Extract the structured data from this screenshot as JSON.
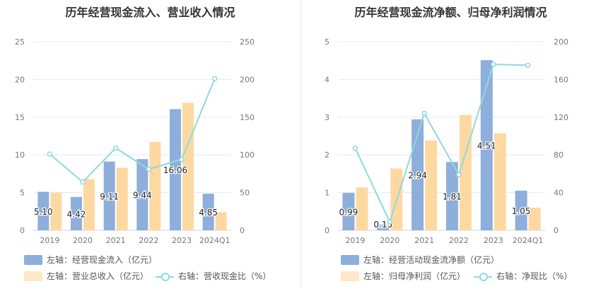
{
  "colors": {
    "bar1": "#8eaedb",
    "bar2": "#fdd9a1",
    "line": "#8fd9df",
    "grid": "#e4e8f1",
    "axis_text": "#777777"
  },
  "left": {
    "title": "历年经营现金流入、营业收入情况",
    "legend": {
      "bar1": "左轴：经营现金流入（亿元）",
      "bar2": "左轴：营业总收入（亿元）",
      "line": "右轴：营收现金比（%）"
    }
  },
  "right": {
    "title": "历年经营现金流净额、归母净利润情况",
    "legend": {
      "bar1": "左轴：经营活动现金流净额（亿元）",
      "bar2": "左轴：归母净利润（亿元）",
      "line": "右轴：净现比（%）"
    }
  },
  "chart_data": [
    {
      "type": "bar",
      "title": "历年经营现金流入、营业收入情况",
      "categories": [
        "2019",
        "2020",
        "2021",
        "2022",
        "2023",
        "2024Q1"
      ],
      "ylim": [
        0,
        25
      ],
      "yticks": [
        "0",
        "5",
        "10",
        "15",
        "20",
        "25"
      ],
      "y2lim": [
        0,
        250
      ],
      "y2ticks": [
        "0",
        "50",
        "100",
        "150",
        "200",
        "250"
      ],
      "series": [
        {
          "name": "左轴：经营现金流入（亿元）",
          "axis": "left",
          "kind": "bar",
          "values": [
            5.1,
            4.42,
            9.11,
            9.44,
            16.06,
            4.85
          ],
          "labels": [
            "5.10",
            "4.42",
            "9.11",
            "9.44",
            "16.06",
            "4.85"
          ]
        },
        {
          "name": "左轴：营业总收入（亿元）",
          "axis": "left",
          "kind": "bar",
          "values": [
            5.0,
            6.8,
            8.3,
            11.7,
            16.9,
            2.4
          ]
        },
        {
          "name": "右轴：营收现金比（%）",
          "axis": "right",
          "kind": "line",
          "values": [
            101,
            64,
            109,
            81,
            94,
            201
          ]
        }
      ],
      "grid": true,
      "legend_position": "bottom"
    },
    {
      "type": "bar",
      "title": "历年经营现金流净额、归母净利润情况",
      "categories": [
        "2019",
        "2020",
        "2021",
        "2022",
        "2023",
        "2024Q1"
      ],
      "ylim": [
        0,
        5
      ],
      "yticks": [
        "0",
        "1",
        "2",
        "3",
        "4",
        "5"
      ],
      "y2lim": [
        0,
        200
      ],
      "y2ticks": [
        "0",
        "40",
        "80",
        "120",
        "160",
        "200"
      ],
      "series": [
        {
          "name": "左轴：经营活动现金流净额（亿元）",
          "axis": "left",
          "kind": "bar",
          "values": [
            0.99,
            0.15,
            2.94,
            1.81,
            4.51,
            1.05
          ],
          "labels": [
            "0.99",
            "0.15",
            "2.94",
            "1.81",
            "4.51",
            "1.05"
          ]
        },
        {
          "name": "左轴：归母净利润（亿元）",
          "axis": "left",
          "kind": "bar",
          "values": [
            1.14,
            1.64,
            2.38,
            3.06,
            2.57,
            0.6
          ]
        },
        {
          "name": "右轴：净现比（%）",
          "axis": "right",
          "kind": "line",
          "values": [
            87,
            9,
            124,
            59,
            176,
            175
          ]
        }
      ],
      "grid": true,
      "legend_position": "bottom"
    }
  ]
}
